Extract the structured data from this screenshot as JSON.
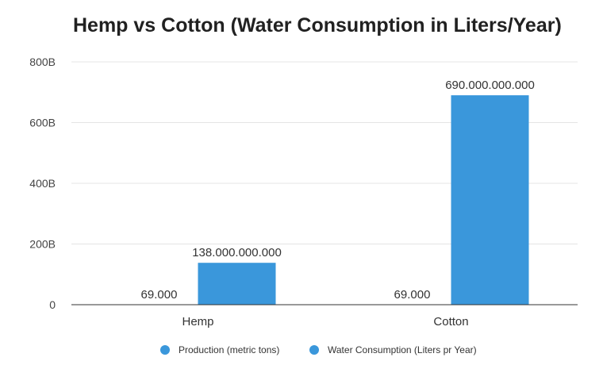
{
  "chart_data": {
    "type": "bar",
    "title": "Hemp vs Cotton (Water Consumption in Liters/Year)",
    "xlabel": "",
    "ylabel": "",
    "categories": [
      "Hemp",
      "Cotton"
    ],
    "series": [
      {
        "name": "Production (metric tons)",
        "color": "#3a97db",
        "values": [
          69000,
          69000
        ],
        "labels": [
          "69.000",
          "69.000"
        ]
      },
      {
        "name": "Water Consumption (Liters pr Year)",
        "color": "#3a97db",
        "values": [
          138000000000,
          690000000000
        ],
        "labels": [
          "138.000.000.000",
          "690.000.000.000"
        ]
      }
    ],
    "ylim": [
      0,
      800000000000
    ],
    "yticks": [
      {
        "value": 0,
        "label": "0"
      },
      {
        "value": 200000000000,
        "label": "200B"
      },
      {
        "value": 400000000000,
        "label": "400B"
      },
      {
        "value": 600000000000,
        "label": "600B"
      },
      {
        "value": 800000000000,
        "label": "800B"
      }
    ],
    "grid": true,
    "legend": "bottom"
  }
}
